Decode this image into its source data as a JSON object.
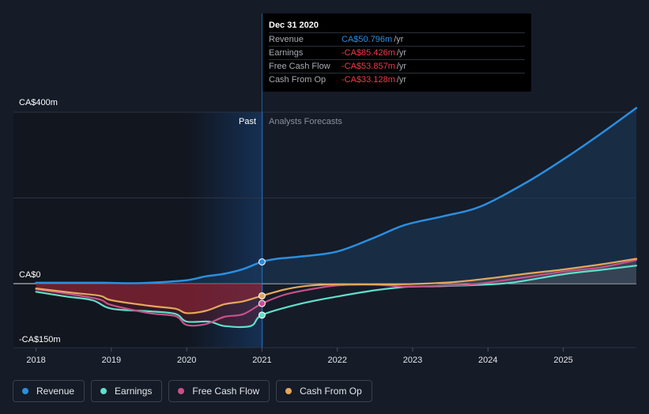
{
  "colors": {
    "revenue": "#2a8fe0",
    "earnings": "#5fe0cc",
    "fcf": "#c9508a",
    "cfo": "#e3a85d",
    "background": "#151b27",
    "negative": "#f03a46"
  },
  "tooltip": {
    "date": "Dec 31 2020",
    "rows": [
      {
        "label": "Revenue",
        "value": "CA$50.796m",
        "unit": "/yr",
        "color": "#2a8fe0"
      },
      {
        "label": "Earnings",
        "value": "-CA$85.426m",
        "unit": "/yr",
        "color": "#f03a46"
      },
      {
        "label": "Free Cash Flow",
        "value": "-CA$53.857m",
        "unit": "/yr",
        "color": "#f03a46"
      },
      {
        "label": "Cash From Op",
        "value": "-CA$33.128m",
        "unit": "/yr",
        "color": "#f03a46"
      }
    ]
  },
  "legend": [
    {
      "label": "Revenue",
      "color": "#2a8fe0"
    },
    {
      "label": "Earnings",
      "color": "#5fe0cc"
    },
    {
      "label": "Free Cash Flow",
      "color": "#c9508a"
    },
    {
      "label": "Cash From Op",
      "color": "#e3a85d"
    }
  ],
  "chart_data": {
    "type": "line",
    "y_tick_labels": [
      "CA$400m",
      "CA$0",
      "-CA$150m"
    ],
    "y_ticks": [
      400,
      0,
      -150
    ],
    "ylim": [
      -150,
      400
    ],
    "xlim": [
      2017.7,
      2025.97
    ],
    "x_tick_labels": [
      "2018",
      "2019",
      "2020",
      "2021",
      "2022",
      "2023",
      "2024",
      "2025"
    ],
    "x_ticks": [
      2018,
      2019,
      2020,
      2021,
      2022,
      2023,
      2024,
      2025
    ],
    "divider_x": 2021,
    "past_label": "Past",
    "forecast_label": "Analysts Forecasts",
    "grid": true,
    "series": [
      {
        "name": "Revenue",
        "key": "revenue",
        "values": [
          [
            2018.0,
            2
          ],
          [
            2018.5,
            2
          ],
          [
            2018.9,
            2
          ],
          [
            2019.25,
            1
          ],
          [
            2019.5,
            2
          ],
          [
            2020.0,
            8
          ],
          [
            2020.25,
            17
          ],
          [
            2020.5,
            23
          ],
          [
            2020.75,
            34
          ],
          [
            2021.0,
            51
          ],
          [
            2021.2,
            58
          ],
          [
            2021.5,
            63
          ],
          [
            2022.0,
            75
          ],
          [
            2022.5,
            108
          ],
          [
            2022.9,
            137
          ],
          [
            2023.4,
            157
          ],
          [
            2023.9,
            180
          ],
          [
            2024.5,
            235
          ],
          [
            2025.0,
            290
          ],
          [
            2025.5,
            350
          ],
          [
            2025.97,
            410
          ]
        ]
      },
      {
        "name": "Earnings",
        "key": "earnings",
        "values": [
          [
            2018.0,
            -22
          ],
          [
            2018.4,
            -35
          ],
          [
            2018.75,
            -45
          ],
          [
            2019.0,
            -68
          ],
          [
            2019.5,
            -75
          ],
          [
            2019.85,
            -82
          ],
          [
            2020.0,
            -103
          ],
          [
            2020.3,
            -103
          ],
          [
            2020.5,
            -115
          ],
          [
            2020.85,
            -115
          ],
          [
            2021.0,
            -85
          ],
          [
            2021.5,
            -55
          ],
          [
            2022.0,
            -35
          ],
          [
            2022.5,
            -18
          ],
          [
            2022.9,
            -9
          ],
          [
            2023.3,
            -7
          ],
          [
            2023.8,
            -4
          ],
          [
            2024.3,
            2
          ],
          [
            2025.0,
            22
          ],
          [
            2025.5,
            32
          ],
          [
            2025.97,
            42
          ]
        ]
      },
      {
        "name": "Free Cash Flow",
        "key": "fcf",
        "values": [
          [
            2018.0,
            -15
          ],
          [
            2018.5,
            -30
          ],
          [
            2018.85,
            -43
          ],
          [
            2019.0,
            -58
          ],
          [
            2019.5,
            -80
          ],
          [
            2019.85,
            -88
          ],
          [
            2020.0,
            -112
          ],
          [
            2020.25,
            -110
          ],
          [
            2020.5,
            -90
          ],
          [
            2020.75,
            -83
          ],
          [
            2021.0,
            -54
          ],
          [
            2021.3,
            -30
          ],
          [
            2021.6,
            -17
          ],
          [
            2022.0,
            -5
          ],
          [
            2022.5,
            -3
          ],
          [
            2022.9,
            -8
          ],
          [
            2023.3,
            -6
          ],
          [
            2023.8,
            -2
          ],
          [
            2024.5,
            15
          ],
          [
            2025.0,
            28
          ],
          [
            2025.5,
            38
          ],
          [
            2025.97,
            55
          ]
        ]
      },
      {
        "name": "Cash From Op",
        "key": "cfo",
        "values": [
          [
            2018.0,
            -13
          ],
          [
            2018.5,
            -25
          ],
          [
            2018.85,
            -33
          ],
          [
            2019.0,
            -45
          ],
          [
            2019.5,
            -60
          ],
          [
            2019.85,
            -68
          ],
          [
            2020.0,
            -80
          ],
          [
            2020.25,
            -74
          ],
          [
            2020.5,
            -56
          ],
          [
            2020.75,
            -48
          ],
          [
            2021.0,
            -33
          ],
          [
            2021.3,
            -16
          ],
          [
            2021.6,
            -6
          ],
          [
            2022.0,
            -2
          ],
          [
            2022.5,
            -2
          ],
          [
            2023.0,
            -1
          ],
          [
            2023.5,
            3
          ],
          [
            2024.0,
            12
          ],
          [
            2024.5,
            23
          ],
          [
            2025.0,
            33
          ],
          [
            2025.5,
            45
          ],
          [
            2025.97,
            58
          ]
        ]
      }
    ],
    "highlighted_x": 2021.0,
    "highlighted_values": {
      "revenue": 50.796,
      "earnings": -85.426,
      "fcf": -53.857,
      "cfo": -33.128
    }
  }
}
